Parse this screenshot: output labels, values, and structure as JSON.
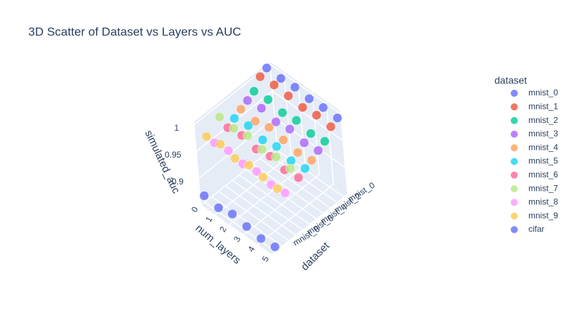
{
  "chart_data": {
    "type": "scatter3d",
    "title": "3D Scatter of Dataset vs Layers vs AUC",
    "x_label": "dataset",
    "y_label": "num_layers",
    "z_label": "simulated_auc",
    "legend_title": "dataset",
    "yticks": [
      0,
      1,
      2,
      3,
      4,
      5
    ],
    "ylim": [
      0,
      5
    ],
    "zlim": [
      0.85,
      1.005
    ],
    "zticks": [
      0.9,
      0.95,
      1
    ],
    "series": [
      {
        "name": "mnist_0",
        "color": "#636efa",
        "y": [
          0,
          1,
          2,
          3,
          4,
          5
        ],
        "values": [
          0.998,
          0.997,
          0.999,
          0.996,
          0.998,
          0.997
        ]
      },
      {
        "name": "mnist_1",
        "color": "#EF553B",
        "y": [
          0,
          1,
          2,
          3,
          4,
          5
        ],
        "values": [
          0.992,
          0.995,
          0.993,
          0.99,
          0.994,
          0.991
        ]
      },
      {
        "name": "mnist_2",
        "color": "#00cc96",
        "y": [
          0,
          1,
          2,
          3,
          4,
          5
        ],
        "values": [
          0.975,
          0.978,
          0.972,
          0.976,
          0.97,
          0.974
        ]
      },
      {
        "name": "mnist_3",
        "color": "#ab63fa",
        "y": [
          0,
          1,
          2,
          3,
          4,
          5
        ],
        "values": [
          0.968,
          0.972,
          0.965,
          0.97,
          0.963,
          0.967
        ]
      },
      {
        "name": "mnist_4",
        "color": "#FFA15A",
        "y": [
          0,
          1,
          2,
          3,
          4,
          5
        ],
        "values": [
          0.962,
          0.958,
          0.965,
          0.96,
          0.955,
          0.959
        ]
      },
      {
        "name": "mnist_5",
        "color": "#19d3f3",
        "y": [
          0,
          1,
          2,
          3,
          4,
          5
        ],
        "values": [
          0.955,
          0.96,
          0.952,
          0.958,
          0.95,
          0.954
        ]
      },
      {
        "name": "mnist_6",
        "color": "#FF6692",
        "y": [
          0,
          1,
          2,
          3,
          4,
          5
        ],
        "values": [
          0.948,
          0.952,
          0.945,
          0.95,
          0.943,
          0.947
        ]
      },
      {
        "name": "mnist_7",
        "color": "#B6E880",
        "y": [
          0,
          1,
          2,
          3,
          4,
          5
        ],
        "values": [
          0.978,
          0.975,
          0.98,
          0.973,
          0.977,
          0.974
        ]
      },
      {
        "name": "mnist_8",
        "color": "#FF97FF",
        "y": [
          0,
          1,
          2,
          3,
          4,
          5
        ],
        "values": [
          0.94,
          0.944,
          0.938,
          0.942,
          0.936,
          0.939
        ]
      },
      {
        "name": "mnist_9",
        "color": "#FECB52",
        "y": [
          0,
          1,
          2,
          3,
          4,
          5
        ],
        "values": [
          0.962,
          0.966,
          0.958,
          0.964,
          0.96,
          0.957
        ]
      },
      {
        "name": "cifar",
        "color": "#636efa",
        "y": [
          0,
          1,
          2,
          3,
          4,
          5
        ],
        "values": [
          0.862,
          0.858,
          0.865,
          0.86,
          0.856,
          0.859
        ]
      }
    ]
  }
}
